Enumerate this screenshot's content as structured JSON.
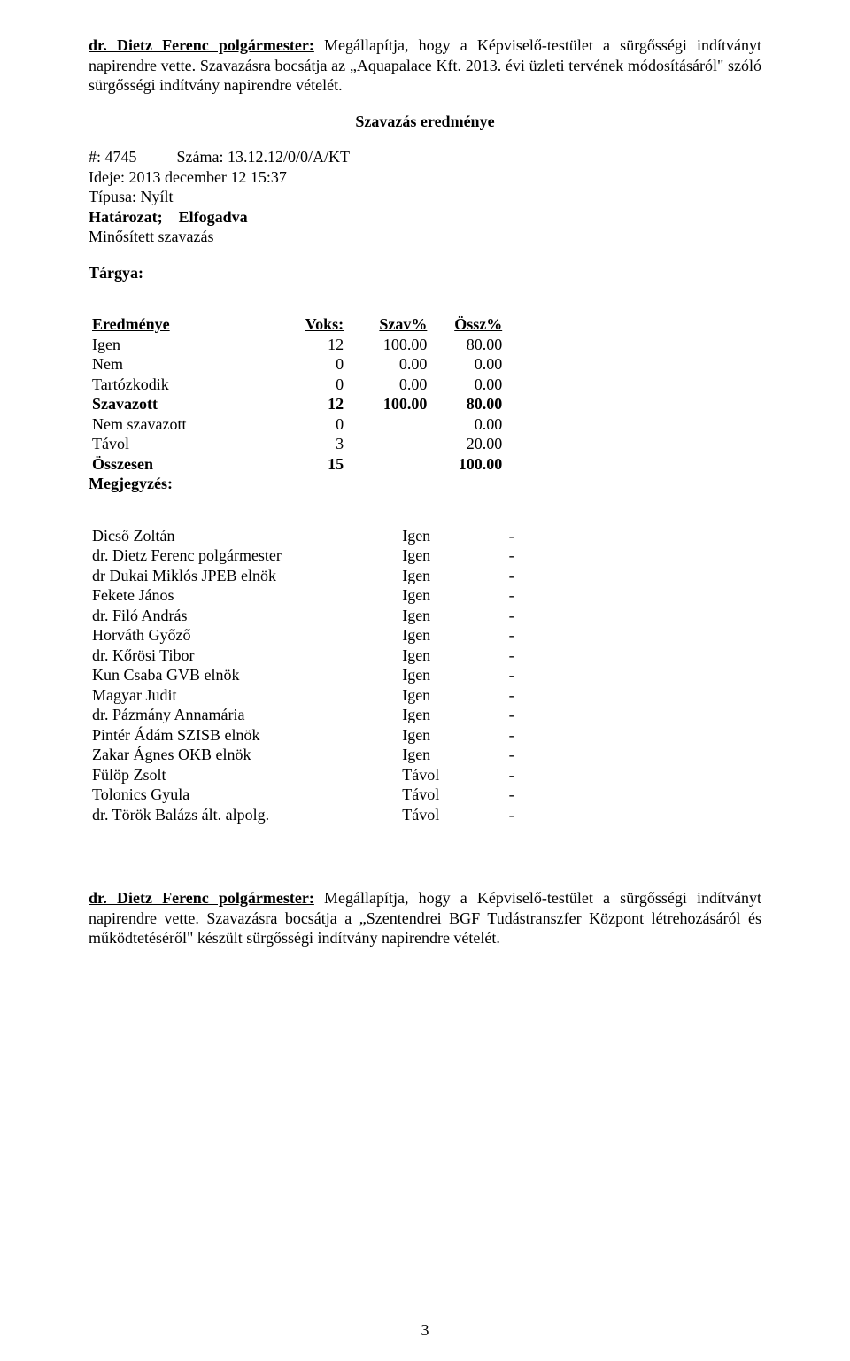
{
  "para1": {
    "speaker": "dr. Dietz Ferenc polgármester:",
    "text_after": " Megállapítja, hogy a Képviselő-testület a sürgősségi indítványt napirendre vette. Szavazásra bocsátja az „Aquapalace Kft. 2013. évi üzleti tervének módosításáról\" szóló sürgősségi indítvány napirendre vételét."
  },
  "vote_result_title": "Szavazás eredménye",
  "meta": {
    "hash": "#: 4745",
    "szama_label": "Száma:",
    "szama_value": "13.12.12/0/0/A/KT",
    "ideje": "Ideje: 2013 december 12 15:37",
    "tipusa": "Típusa: Nyílt",
    "hatarozat": "Határozat;    Elfogadva",
    "minositett": "Minősített szavazás",
    "targya": "Tárgya:"
  },
  "result": {
    "headers": [
      "Eredménye",
      "Voks:",
      "Szav%",
      "Össz%"
    ],
    "rows": [
      {
        "label": "Igen",
        "voks": "12",
        "szav": "100.00",
        "ossz": "80.00",
        "bold": false
      },
      {
        "label": "Nem",
        "voks": "0",
        "szav": "0.00",
        "ossz": "0.00",
        "bold": false
      },
      {
        "label": "Tartózkodik",
        "voks": "0",
        "szav": "0.00",
        "ossz": "0.00",
        "bold": false
      },
      {
        "label": "Szavazott",
        "voks": "12",
        "szav": "100.00",
        "ossz": "80.00",
        "bold": true
      },
      {
        "label": "Nem szavazott",
        "voks": "0",
        "szav": "",
        "ossz": "0.00",
        "bold": false
      },
      {
        "label": "Távol",
        "voks": "3",
        "szav": "",
        "ossz": "20.00",
        "bold": false
      },
      {
        "label": "Összesen",
        "voks": "15",
        "szav": "",
        "ossz": "100.00",
        "bold": true
      }
    ],
    "megjegyzes": "Megjegyzés:"
  },
  "votes": [
    {
      "name": "Dicső Zoltán",
      "vote": "Igen",
      "dash": "-"
    },
    {
      "name": "dr. Dietz Ferenc polgármester",
      "vote": "Igen",
      "dash": "-"
    },
    {
      "name": "dr Dukai Miklós JPEB elnök",
      "vote": "Igen",
      "dash": "-"
    },
    {
      "name": "Fekete János",
      "vote": "Igen",
      "dash": "-"
    },
    {
      "name": "dr. Filó András",
      "vote": "Igen",
      "dash": "-"
    },
    {
      "name": "Horváth Győző",
      "vote": "Igen",
      "dash": "-"
    },
    {
      "name": "dr. Kőrösi Tibor",
      "vote": "Igen",
      "dash": "-"
    },
    {
      "name": "Kun Csaba GVB elnök",
      "vote": "Igen",
      "dash": "-"
    },
    {
      "name": "Magyar Judit",
      "vote": "Igen",
      "dash": "-"
    },
    {
      "name": "dr. Pázmány Annamária",
      "vote": "Igen",
      "dash": "-"
    },
    {
      "name": "Pintér Ádám SZISB elnök",
      "vote": "Igen",
      "dash": "-"
    },
    {
      "name": "Zakar Ágnes OKB elnök",
      "vote": "Igen",
      "dash": "-"
    },
    {
      "name": "Fülöp Zsolt",
      "vote": "Távol",
      "dash": "-"
    },
    {
      "name": "Tolonics Gyula",
      "vote": "Távol",
      "dash": "-"
    },
    {
      "name": "dr. Török Balázs ált. alpolg.",
      "vote": "Távol",
      "dash": "-"
    }
  ],
  "para2": {
    "speaker": "dr. Dietz Ferenc polgármester:",
    "text_after": " Megállapítja, hogy a Képviselő-testület a sürgősségi indítványt napirendre vette. Szavazásra bocsátja a „Szentendrei BGF Tudástranszfer Központ létrehozásáról és működtetéséről\" készült sürgősségi indítvány napirendre vételét."
  },
  "page_number": "3"
}
